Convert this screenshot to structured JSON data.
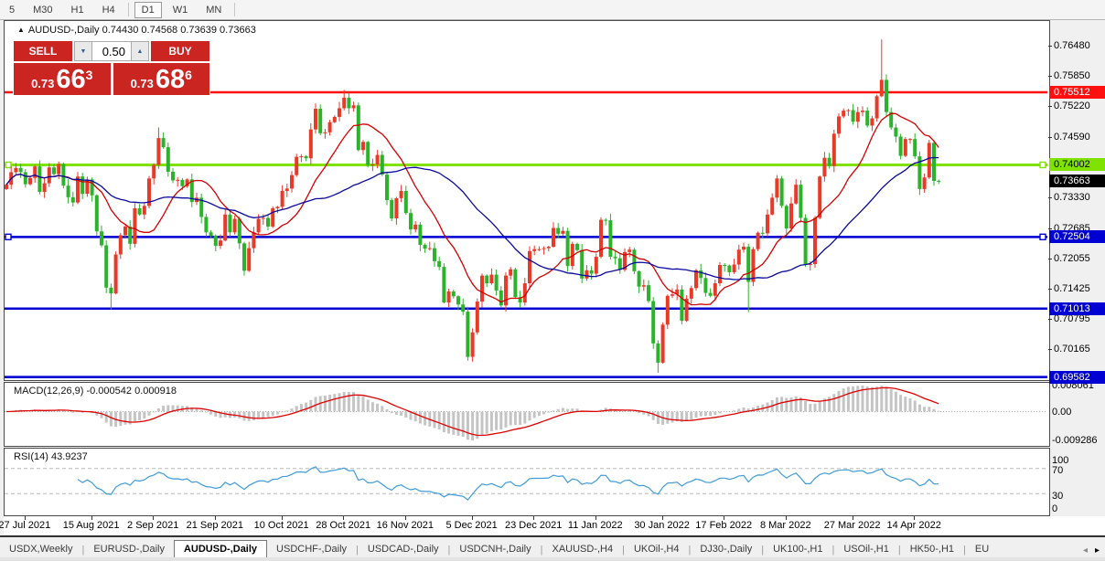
{
  "toolbar": {
    "timeframes": [
      "5",
      "M30",
      "H1",
      "H4",
      "D1",
      "W1",
      "MN"
    ],
    "active": "D1"
  },
  "header": {
    "symbol_line": "AUDUSD-,Daily  0.74430 0.74568 0.73639 0.73663"
  },
  "trade_panel": {
    "sell_label": "SELL",
    "buy_label": "BUY",
    "volume": "0.50",
    "sell_price": {
      "small": "0.73",
      "big": "66",
      "sup": "3"
    },
    "buy_price": {
      "small": "0.73",
      "big": "68",
      "sup": "6"
    },
    "accent_red": "#cb2522"
  },
  "chart_data": {
    "type": "candlestick",
    "symbol": "AUDUSD-,Daily",
    "timeframe": "Daily",
    "ohlc_display": {
      "open": "0.74430",
      "high": "0.74568",
      "low": "0.73639",
      "close": "0.73663"
    },
    "x_labels": [
      "27 Jul 2021",
      "15 Aug 2021",
      "2 Sep 2021",
      "21 Sep 2021",
      "10 Oct 2021",
      "28 Oct 2021",
      "16 Nov 2021",
      "5 Dec 2021",
      "23 Dec 2021",
      "11 Jan 2022",
      "30 Jan 2022",
      "17 Feb 2022",
      "8 Mar 2022",
      "27 Mar 2022",
      "14 Apr 2022"
    ],
    "x_label_bar_indices": [
      4,
      18,
      31,
      44,
      58,
      71,
      84,
      98,
      111,
      124,
      138,
      151,
      164,
      178,
      191
    ],
    "first_open": 0.735,
    "closes": [
      0.7359,
      0.7385,
      0.7394,
      0.7385,
      0.736,
      0.7373,
      0.7397,
      0.7344,
      0.7362,
      0.7395,
      0.7381,
      0.7402,
      0.7357,
      0.7333,
      0.7322,
      0.7376,
      0.734,
      0.737,
      0.7337,
      0.7262,
      0.7233,
      0.7145,
      0.7133,
      0.7214,
      0.7254,
      0.7272,
      0.7236,
      0.731,
      0.7297,
      0.7315,
      0.7372,
      0.74,
      0.7456,
      0.7437,
      0.7386,
      0.7368,
      0.7369,
      0.7356,
      0.737,
      0.7323,
      0.7332,
      0.7292,
      0.726,
      0.7253,
      0.7232,
      0.7243,
      0.7297,
      0.726,
      0.7288,
      0.7237,
      0.718,
      0.7227,
      0.726,
      0.7288,
      0.729,
      0.7272,
      0.731,
      0.7313,
      0.7346,
      0.7351,
      0.7379,
      0.7417,
      0.7418,
      0.7414,
      0.7474,
      0.7517,
      0.7466,
      0.7468,
      0.7489,
      0.75,
      0.7518,
      0.754,
      0.7518,
      0.7524,
      0.7431,
      0.7448,
      0.74,
      0.7401,
      0.7421,
      0.738,
      0.7327,
      0.7289,
      0.7331,
      0.7346,
      0.73,
      0.7266,
      0.7276,
      0.7234,
      0.7226,
      0.7227,
      0.72,
      0.7188,
      0.7114,
      0.7137,
      0.7127,
      0.711,
      0.7095,
      0.7001,
      0.7052,
      0.7116,
      0.717,
      0.7154,
      0.7172,
      0.7139,
      0.7108,
      0.717,
      0.7183,
      0.7125,
      0.7114,
      0.7154,
      0.7221,
      0.7225,
      0.7225,
      0.7227,
      0.723,
      0.7269,
      0.7257,
      0.7263,
      0.719,
      0.7236,
      0.7223,
      0.7164,
      0.7181,
      0.7174,
      0.7209,
      0.7286,
      0.7285,
      0.7209,
      0.7206,
      0.7182,
      0.7219,
      0.7224,
      0.7179,
      0.7147,
      0.715,
      0.7117,
      0.7029,
      0.6989,
      0.7068,
      0.7128,
      0.7131,
      0.7141,
      0.7076,
      0.7122,
      0.7144,
      0.7181,
      0.7165,
      0.7134,
      0.7128,
      0.7154,
      0.7192,
      0.7191,
      0.7177,
      0.7193,
      0.7224,
      0.723,
      0.7157,
      0.7225,
      0.7259,
      0.7258,
      0.7297,
      0.7332,
      0.7372,
      0.7315,
      0.7268,
      0.732,
      0.7359,
      0.729,
      0.7193,
      0.7194,
      0.729,
      0.7376,
      0.7415,
      0.7398,
      0.7465,
      0.7501,
      0.7513,
      0.7514,
      0.749,
      0.751,
      0.7513,
      0.7482,
      0.7497,
      0.7543,
      0.7577,
      0.751,
      0.7478,
      0.7459,
      0.7419,
      0.7454,
      0.7454,
      0.7418,
      0.735,
      0.7374,
      0.7446,
      0.7367,
      0.7366
    ],
    "wick_overrides": {
      "22": {
        "low": 0.71
      },
      "32": {
        "high": 0.7478
      },
      "50": {
        "low": 0.717
      },
      "71": {
        "high": 0.7556
      },
      "97": {
        "low": 0.6993
      },
      "137": {
        "low": 0.6968
      },
      "156": {
        "low": 0.7094
      },
      "184": {
        "high": 0.7661
      }
    },
    "candle_up_color": "#e93a28",
    "candle_down_color": "#2bb32b",
    "y_ticks": [
      "0.76480",
      "0.75850",
      "0.75220",
      "0.74590",
      "0.73330",
      "0.72685",
      "0.72055",
      "0.71425",
      "0.70795",
      "0.70165"
    ],
    "horizontal_lines": [
      {
        "price": 0.75512,
        "label": "0.75512",
        "color": "#fe1010",
        "text_color": "#ffffff",
        "width": 2.5,
        "handles": false
      },
      {
        "price": 0.74002,
        "label": "0.74002",
        "color": "#7fe200",
        "text_color": "#000000",
        "width": 3,
        "handles": true
      },
      {
        "price": 0.72504,
        "label": "0.72504",
        "color": "#0000d2",
        "text_color": "#ffffff",
        "width": 2.5,
        "handles": true
      },
      {
        "price": 0.71013,
        "label": "0.71013",
        "color": "#0000d2",
        "text_color": "#ffffff",
        "width": 2.5,
        "handles": false
      },
      {
        "price": 0.69582,
        "label": "0.69582",
        "color": "#0000d2",
        "text_color": "#ffffff",
        "width": 3.5,
        "handles": false
      }
    ],
    "current_price": {
      "label": "0.73663",
      "value": 0.73663,
      "bg": "#000000",
      "text_color": "#ffffff"
    },
    "moving_averages": [
      {
        "name": "ma-fast",
        "period": 13,
        "color": "#d40000"
      },
      {
        "name": "ma-slow",
        "period": 34,
        "color": "#0a0a9e"
      }
    ],
    "macd": {
      "label": "MACD(12,26,9) -0.000542 0.000918",
      "fast": 12,
      "slow": 26,
      "signal": 9,
      "value_text": "-0.000542",
      "signal_text": "0.000918",
      "ticks": [
        "0.008061",
        "0.00",
        "-0.009286"
      ],
      "hist_color": "#c4c4c4",
      "line_color": "#e00000"
    },
    "rsi": {
      "label": "RSI(14) 43.9237",
      "period": 14,
      "value_text": "43.9237",
      "ticks": [
        "100",
        "70",
        "30",
        "0"
      ],
      "levels": [
        70,
        30
      ],
      "color": "#3e9bd8"
    }
  },
  "tabs": {
    "items": [
      "USDX,Weekly",
      "EURUSD-,Daily",
      "AUDUSD-,Daily",
      "USDCHF-,Daily",
      "USDCAD-,Daily",
      "USDCNH-,Daily",
      "XAUUSD-,H4",
      "UKOil-,H4",
      "DJ30-,Daily",
      "UK100-,H1",
      "USOil-,H1",
      "HK50-,H1",
      "EU"
    ],
    "active": "AUDUSD-,Daily",
    "scroll_left": "◂",
    "scroll_right": "▸"
  }
}
